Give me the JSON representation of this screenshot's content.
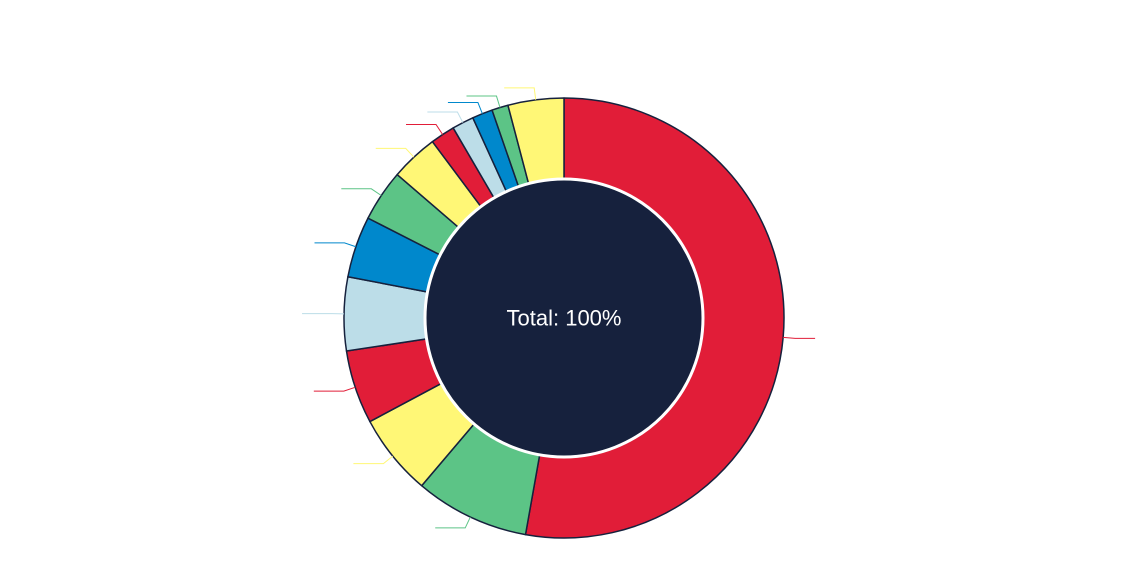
{
  "chart_data": {
    "type": "pie",
    "donut": true,
    "center_label": "Total: 100%",
    "legend": "none",
    "slices": [
      {
        "value": 52.8,
        "color": "#e11d38"
      },
      {
        "value": 8.4,
        "color": "#5cc486"
      },
      {
        "value": 6.0,
        "color": "#fff776"
      },
      {
        "value": 5.4,
        "color": "#e11d38"
      },
      {
        "value": 5.4,
        "color": "#bcdde8"
      },
      {
        "value": 4.5,
        "color": "#0088cc"
      },
      {
        "value": 3.8,
        "color": "#5cc486"
      },
      {
        "value": 3.5,
        "color": "#fff776"
      },
      {
        "value": 1.8,
        "color": "#e11d38"
      },
      {
        "value": 1.6,
        "color": "#bcdde8"
      },
      {
        "value": 1.5,
        "color": "#0088cc"
      },
      {
        "value": 1.2,
        "color": "#5cc486"
      },
      {
        "value": 4.1,
        "color": "#fff776"
      }
    ],
    "colors": {
      "center_fill": "#16213d",
      "outline": "#16213d",
      "inner_ring": "#ffffff"
    }
  }
}
